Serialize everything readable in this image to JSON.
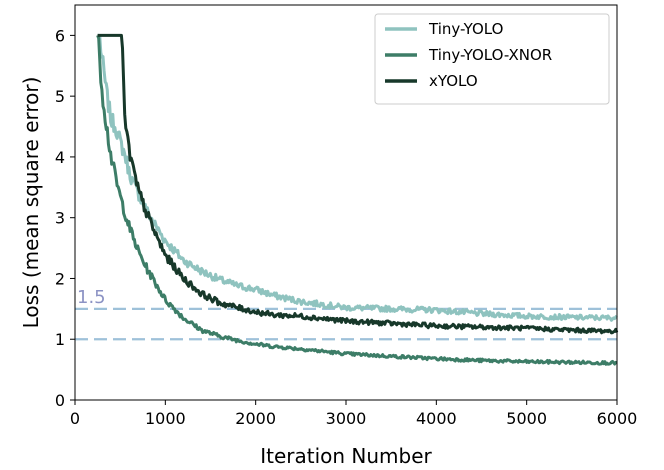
{
  "chart_data": {
    "type": "line",
    "xlabel": "Iteration Number",
    "ylabel": "Loss (mean square error)",
    "xlim": [
      0,
      6000
    ],
    "ylim": [
      0,
      6.5
    ],
    "xticks": [
      0,
      1000,
      2000,
      3000,
      4000,
      5000,
      6000
    ],
    "yticks": [
      0,
      1,
      2,
      3,
      4,
      5,
      6
    ],
    "grid": false,
    "legend_position": "top-right",
    "series": [
      {
        "name": "Tiny-YOLO",
        "color": "#8fc3bf",
        "x": [
          250,
          270,
          300,
          350,
          400,
          450,
          500,
          550,
          600,
          650,
          700,
          800,
          900,
          1000,
          1200,
          1400,
          1600,
          1800,
          2000,
          2200,
          2500,
          3000,
          3500,
          4000,
          4500,
          5000,
          5500,
          6000
        ],
        "y": [
          6.0,
          6.0,
          5.6,
          5.05,
          4.6,
          4.5,
          4.25,
          4.05,
          3.75,
          3.55,
          3.4,
          3.1,
          2.85,
          2.62,
          2.3,
          2.12,
          1.98,
          1.88,
          1.82,
          1.72,
          1.62,
          1.52,
          1.5,
          1.48,
          1.42,
          1.38,
          1.36,
          1.35
        ]
      },
      {
        "name": "Tiny-YOLO-XNOR",
        "color": "#3d7d67",
        "x": [
          250,
          260,
          280,
          300,
          350,
          400,
          450,
          500,
          550,
          600,
          700,
          800,
          900,
          1000,
          1200,
          1400,
          1600,
          1800,
          2000,
          2200,
          2500,
          3000,
          3500,
          4000,
          4500,
          5000,
          5500,
          6000
        ],
        "y": [
          6.0,
          6.0,
          5.5,
          5.1,
          4.5,
          4.0,
          3.65,
          3.35,
          3.1,
          2.85,
          2.45,
          2.15,
          1.9,
          1.65,
          1.35,
          1.15,
          1.05,
          0.98,
          0.92,
          0.88,
          0.84,
          0.76,
          0.72,
          0.68,
          0.65,
          0.63,
          0.62,
          0.61
        ]
      },
      {
        "name": "xYOLO",
        "color": "#17382a",
        "x": [
          250,
          520,
          540,
          560,
          600,
          650,
          700,
          800,
          900,
          1000,
          1200,
          1400,
          1600,
          1800,
          2000,
          2200,
          2500,
          3000,
          3500,
          4000,
          4500,
          5000,
          5500,
          6000
        ],
        "y": [
          6.0,
          6.0,
          5.0,
          4.5,
          4.1,
          3.75,
          3.45,
          3.05,
          2.7,
          2.38,
          2.0,
          1.75,
          1.6,
          1.52,
          1.45,
          1.4,
          1.38,
          1.3,
          1.26,
          1.22,
          1.2,
          1.18,
          1.15,
          1.13
        ]
      }
    ],
    "reference_lines": [
      {
        "y": 1.5,
        "label": "1.5",
        "color": "#9ec1d9",
        "label_color": "#8c93c4"
      },
      {
        "y": 1.0,
        "label": "",
        "color": "#9ec1d9"
      }
    ]
  }
}
